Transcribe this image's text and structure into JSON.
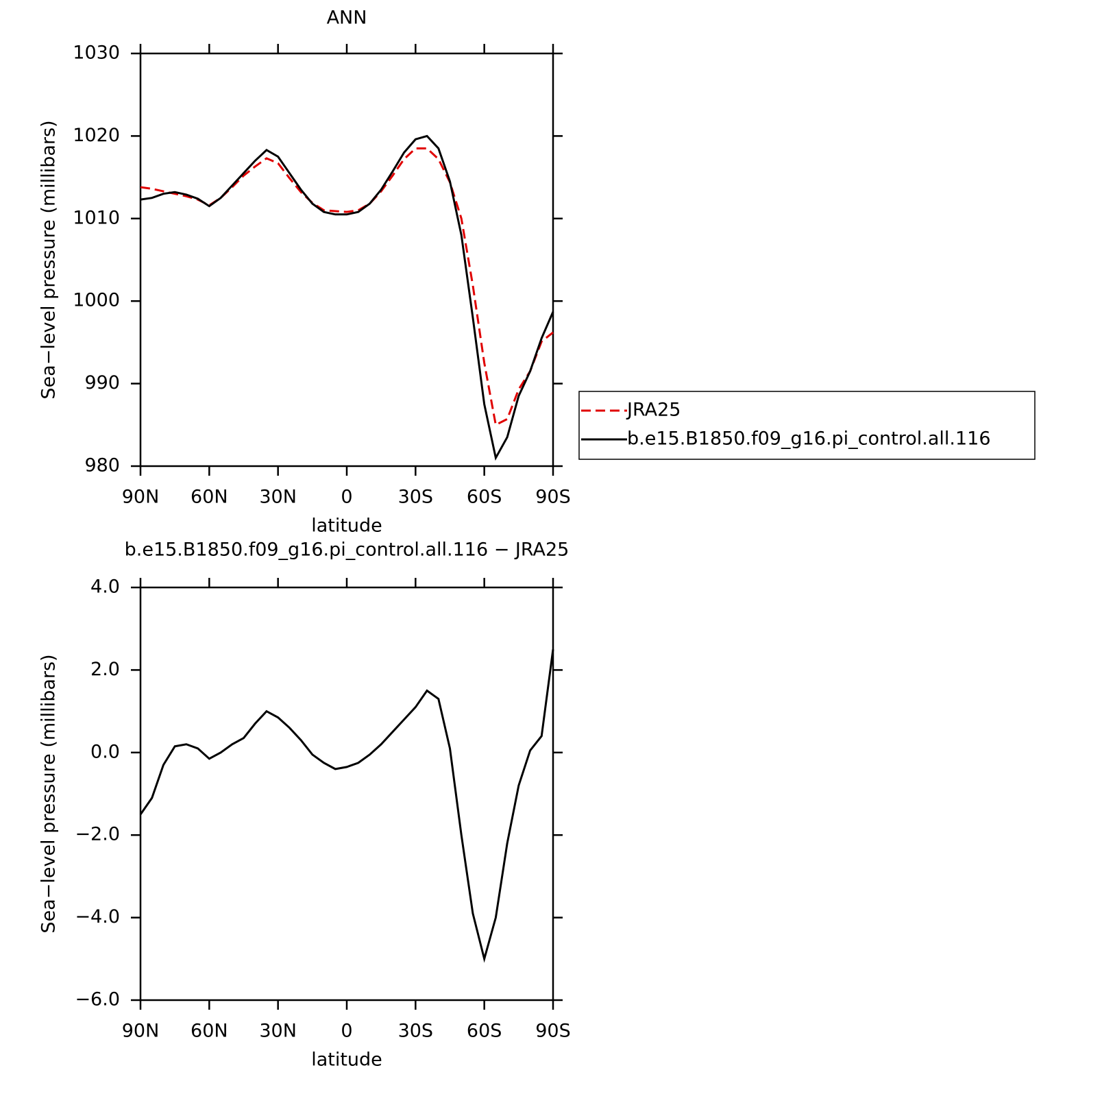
{
  "chart_data": [
    {
      "type": "line",
      "title": "ANN",
      "xlabel": "latitude",
      "ylabel": "Sea−level pressure (millibars)",
      "x": [
        90,
        85,
        80,
        75,
        70,
        65,
        60,
        55,
        50,
        45,
        40,
        35,
        30,
        25,
        20,
        15,
        10,
        5,
        0,
        -5,
        -10,
        -15,
        -20,
        -25,
        -30,
        -35,
        -40,
        -45,
        -50,
        -55,
        -60,
        -65,
        -70,
        -75,
        -80,
        -85,
        -90
      ],
      "series": [
        {
          "name": "JRA25",
          "color": "#e00000",
          "dash": true,
          "values": [
            1013.8,
            1013.6,
            1013.3,
            1013.0,
            1012.7,
            1012.3,
            1011.6,
            1012.5,
            1013.8,
            1015.2,
            1016.3,
            1017.3,
            1016.7,
            1014.9,
            1013.2,
            1011.9,
            1011.0,
            1010.9,
            1010.8,
            1011.0,
            1011.8,
            1013.3,
            1015.2,
            1017.2,
            1018.5,
            1018.5,
            1017.2,
            1014.4,
            1010.0,
            1001.9,
            992.5,
            985.0,
            985.7,
            989.3,
            991.5,
            995.1,
            996.2
          ]
        },
        {
          "name": "b.e15.B1850.f09_g16.pi_control.all.116",
          "color": "#000000",
          "dash": false,
          "values": [
            1012.3,
            1012.5,
            1013.0,
            1013.2,
            1012.9,
            1012.4,
            1011.5,
            1012.5,
            1014.0,
            1015.5,
            1017.0,
            1018.3,
            1017.5,
            1015.5,
            1013.5,
            1011.8,
            1010.8,
            1010.5,
            1010.5,
            1010.8,
            1011.8,
            1013.5,
            1015.7,
            1018.0,
            1019.6,
            1020.0,
            1018.5,
            1014.5,
            1008.0,
            998.0,
            987.5,
            981.0,
            983.5,
            988.5,
            991.5,
            995.5,
            998.7
          ]
        }
      ],
      "xlim": [
        90,
        -90
      ],
      "xticks": [
        {
          "value": 90,
          "label": "90N"
        },
        {
          "value": 60,
          "label": "60N"
        },
        {
          "value": 30,
          "label": "30N"
        },
        0,
        {
          "value": -30,
          "label": "30S"
        },
        {
          "value": -60,
          "label": "60S"
        },
        {
          "value": -90,
          "label": "90S"
        }
      ],
      "ylim": [
        980,
        1030
      ],
      "yticks": [
        980,
        990,
        1000,
        1010,
        1020,
        1030
      ],
      "legend": "right"
    },
    {
      "type": "line",
      "title": "b.e15.B1850.f09_g16.pi_control.all.116 − JRA25",
      "xlabel": "latitude",
      "ylabel": "Sea−level pressure (millibars)",
      "x": [
        90,
        85,
        80,
        75,
        70,
        65,
        60,
        55,
        50,
        45,
        40,
        35,
        30,
        25,
        20,
        15,
        10,
        5,
        0,
        -5,
        -10,
        -15,
        -20,
        -25,
        -30,
        -35,
        -40,
        -45,
        -50,
        -55,
        -60,
        -65,
        -70,
        -75,
        -80,
        -85,
        -90
      ],
      "color": "#000000",
      "values": [
        -1.5,
        -1.1,
        -0.3,
        0.15,
        0.2,
        0.1,
        -0.15,
        0.0,
        0.2,
        0.35,
        0.7,
        1.0,
        0.85,
        0.6,
        0.3,
        -0.05,
        -0.25,
        -0.4,
        -0.35,
        -0.25,
        -0.05,
        0.2,
        0.5,
        0.8,
        1.1,
        1.5,
        1.3,
        0.1,
        -2.0,
        -3.9,
        -5.0,
        -4.0,
        -2.2,
        -0.8,
        0.05,
        0.4,
        2.5
      ],
      "xlim": [
        90,
        -90
      ],
      "xticks": [
        {
          "value": 90,
          "label": "90N"
        },
        {
          "value": 60,
          "label": "60N"
        },
        {
          "value": 30,
          "label": "30N"
        },
        0,
        {
          "value": -30,
          "label": "30S"
        },
        {
          "value": -60,
          "label": "60S"
        },
        {
          "value": -90,
          "label": "90S"
        }
      ],
      "ylim": [
        -6,
        4
      ],
      "yticks": [
        {
          "value": -6,
          "label": "−6.0"
        },
        {
          "value": -4,
          "label": "−4.0"
        },
        {
          "value": -2,
          "label": "−2.0"
        },
        {
          "value": 0,
          "label": "0.0"
        },
        {
          "value": 2,
          "label": "2.0"
        },
        {
          "value": 4,
          "label": "4.0"
        }
      ]
    }
  ]
}
